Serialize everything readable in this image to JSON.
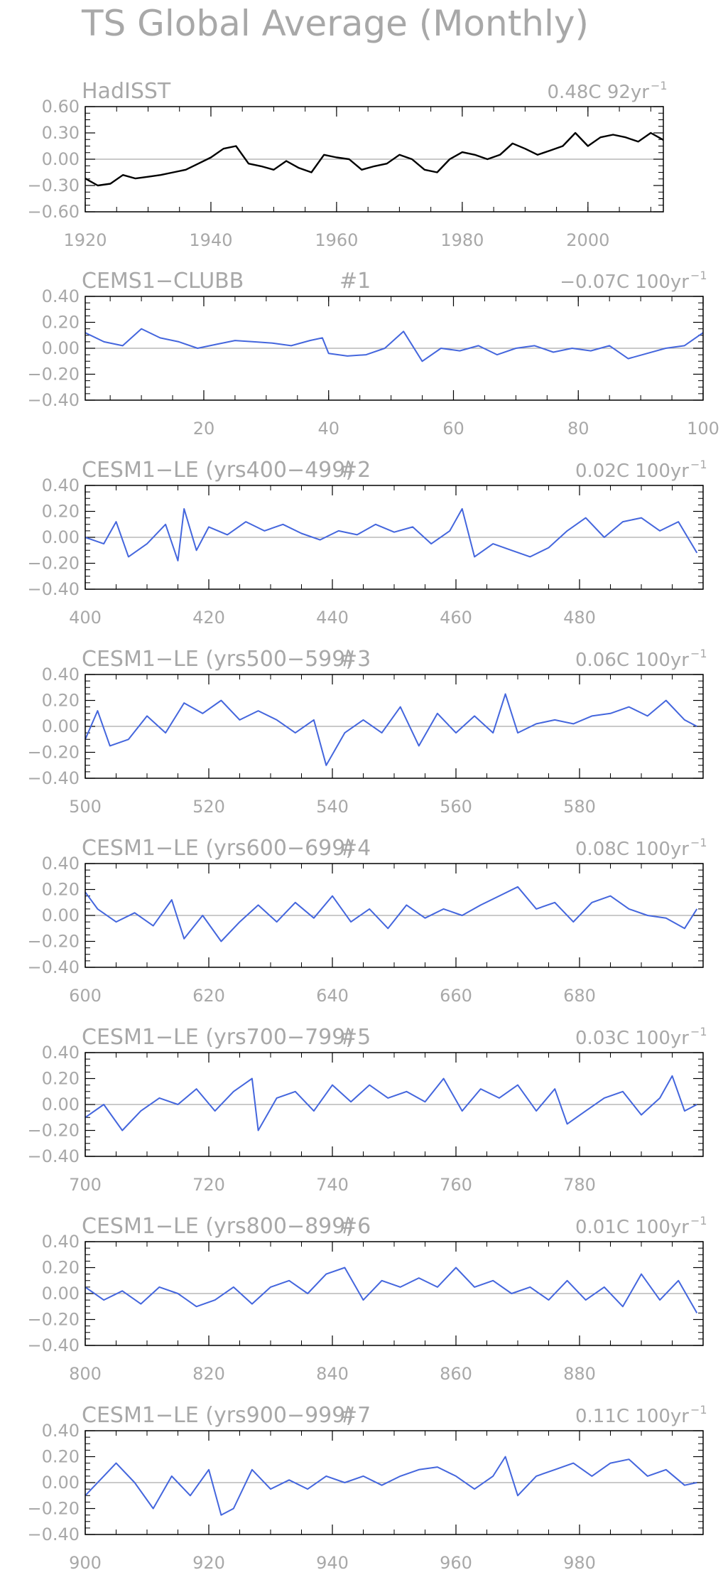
{
  "title": "TS Global Average (Monthly)",
  "chart_data": [
    {
      "type": "line",
      "title": "HadISST",
      "number_label": "",
      "trend_text": "0.48C  92yr",
      "trend_exp": "−1",
      "color": "#000000",
      "ylim": [
        -0.6,
        0.6
      ],
      "yticks": [
        0.6,
        0.3,
        0.0,
        -0.3,
        -0.6
      ],
      "ytick_labels": [
        "0.60",
        "0.30",
        "0.00",
        "−0.30",
        "−0.60"
      ],
      "xlim": [
        1920,
        2012
      ],
      "xticks": [
        1920,
        1940,
        1960,
        1980,
        2000
      ],
      "xtick_labels": [
        "1920",
        "1940",
        "1960",
        "1980",
        "2000"
      ],
      "series": [
        {
          "x": [
            1920,
            1922,
            1924,
            1926,
            1928,
            1930,
            1932,
            1934,
            1936,
            1938,
            1940,
            1942,
            1944,
            1946,
            1948,
            1950,
            1952,
            1954,
            1956,
            1958,
            1960,
            1962,
            1964,
            1966,
            1968,
            1970,
            1972,
            1974,
            1976,
            1978,
            1980,
            1982,
            1984,
            1986,
            1988,
            1990,
            1992,
            1994,
            1996,
            1998,
            2000,
            2002,
            2004,
            2006,
            2008,
            2010,
            2012
          ],
          "values": [
            -0.22,
            -0.3,
            -0.28,
            -0.18,
            -0.22,
            -0.2,
            -0.18,
            -0.15,
            -0.12,
            -0.05,
            0.02,
            0.12,
            0.15,
            -0.05,
            -0.08,
            -0.12,
            -0.02,
            -0.1,
            -0.15,
            0.05,
            0.02,
            0.0,
            -0.12,
            -0.08,
            -0.05,
            0.05,
            0.0,
            -0.12,
            -0.15,
            0.0,
            0.08,
            0.05,
            0.0,
            0.05,
            0.18,
            0.12,
            0.05,
            0.1,
            0.15,
            0.3,
            0.15,
            0.25,
            0.28,
            0.25,
            0.2,
            0.3,
            0.22
          ]
        }
      ]
    },
    {
      "type": "line",
      "title": "CEMS1−CLUBB",
      "number_label": "#1",
      "trend_text": "−0.07C  100yr",
      "trend_exp": "−1",
      "color": "#4466dd",
      "ylim": [
        -0.4,
        0.4
      ],
      "yticks": [
        0.4,
        0.2,
        0.0,
        -0.2,
        -0.4
      ],
      "ytick_labels": [
        "0.40",
        "0.20",
        "0.00",
        "−0.20",
        "−0.40"
      ],
      "xlim": [
        1,
        100
      ],
      "xticks": [
        20,
        40,
        60,
        80,
        100
      ],
      "xtick_labels": [
        "20",
        "40",
        "60",
        "80",
        "100"
      ],
      "series": [
        {
          "x": [
            1,
            4,
            7,
            10,
            13,
            16,
            19,
            22,
            25,
            28,
            31,
            34,
            37,
            39,
            40,
            43,
            46,
            49,
            52,
            55,
            58,
            61,
            64,
            67,
            70,
            73,
            76,
            79,
            82,
            85,
            88,
            91,
            94,
            97,
            100
          ],
          "values": [
            0.12,
            0.05,
            0.02,
            0.15,
            0.08,
            0.05,
            0.0,
            0.03,
            0.06,
            0.05,
            0.04,
            0.02,
            0.06,
            0.08,
            -0.04,
            -0.06,
            -0.05,
            0.0,
            0.13,
            -0.1,
            0.0,
            -0.02,
            0.02,
            -0.05,
            0.0,
            0.02,
            -0.03,
            0.0,
            -0.02,
            0.02,
            -0.08,
            -0.04,
            0.0,
            0.02,
            0.12
          ]
        }
      ]
    },
    {
      "type": "line",
      "title": "CESM1−LE (yrs400−499)",
      "number_label": "#2",
      "trend_text": "0.02C  100yr",
      "trend_exp": "−1",
      "color": "#4466dd",
      "ylim": [
        -0.4,
        0.4
      ],
      "yticks": [
        0.4,
        0.2,
        0.0,
        -0.2,
        -0.4
      ],
      "ytick_labels": [
        "0.40",
        "0.20",
        "0.00",
        "−0.20",
        "−0.40"
      ],
      "xlim": [
        400,
        500
      ],
      "xticks": [
        400,
        420,
        440,
        460,
        480
      ],
      "xtick_labels": [
        "400",
        "420",
        "440",
        "460",
        "480"
      ],
      "series": [
        {
          "x": [
            400,
            403,
            405,
            407,
            410,
            413,
            415,
            416,
            418,
            420,
            423,
            426,
            429,
            432,
            435,
            438,
            441,
            444,
            447,
            450,
            453,
            456,
            459,
            461,
            463,
            466,
            469,
            472,
            475,
            478,
            481,
            484,
            487,
            490,
            493,
            496,
            499
          ],
          "values": [
            0.0,
            -0.05,
            0.12,
            -0.15,
            -0.05,
            0.1,
            -0.18,
            0.22,
            -0.1,
            0.08,
            0.02,
            0.12,
            0.05,
            0.1,
            0.03,
            -0.02,
            0.05,
            0.02,
            0.1,
            0.04,
            0.08,
            -0.05,
            0.05,
            0.22,
            -0.15,
            -0.05,
            -0.1,
            -0.15,
            -0.08,
            0.05,
            0.15,
            0.0,
            0.12,
            0.15,
            0.05,
            0.12,
            -0.12
          ]
        }
      ]
    },
    {
      "type": "line",
      "title": "CESM1−LE (yrs500−599)",
      "number_label": "#3",
      "trend_text": "0.06C  100yr",
      "trend_exp": "−1",
      "color": "#4466dd",
      "ylim": [
        -0.4,
        0.4
      ],
      "yticks": [
        0.4,
        0.2,
        0.0,
        -0.2,
        -0.4
      ],
      "ytick_labels": [
        "0.40",
        "0.20",
        "0.00",
        "−0.20",
        "−0.40"
      ],
      "xlim": [
        500,
        600
      ],
      "xticks": [
        500,
        520,
        540,
        560,
        580
      ],
      "xtick_labels": [
        "500",
        "520",
        "540",
        "560",
        "580"
      ],
      "series": [
        {
          "x": [
            500,
            502,
            504,
            507,
            510,
            513,
            516,
            519,
            522,
            525,
            528,
            531,
            534,
            537,
            539,
            542,
            545,
            548,
            551,
            554,
            557,
            560,
            563,
            566,
            568,
            570,
            573,
            576,
            579,
            582,
            585,
            588,
            591,
            594,
            597,
            599
          ],
          "values": [
            -0.1,
            0.12,
            -0.15,
            -0.1,
            0.08,
            -0.05,
            0.18,
            0.1,
            0.2,
            0.05,
            0.12,
            0.05,
            -0.05,
            0.05,
            -0.3,
            -0.05,
            0.05,
            -0.05,
            0.15,
            -0.15,
            0.1,
            -0.05,
            0.08,
            -0.05,
            0.25,
            -0.05,
            0.02,
            0.05,
            0.02,
            0.08,
            0.1,
            0.15,
            0.08,
            0.2,
            0.05,
            0.0
          ]
        }
      ]
    },
    {
      "type": "line",
      "title": "CESM1−LE (yrs600−699)",
      "number_label": "#4",
      "trend_text": "0.08C  100yr",
      "trend_exp": "−1",
      "color": "#4466dd",
      "ylim": [
        -0.4,
        0.4
      ],
      "yticks": [
        0.4,
        0.2,
        0.0,
        -0.2,
        -0.4
      ],
      "ytick_labels": [
        "0.40",
        "0.20",
        "0.00",
        "−0.20",
        "−0.40"
      ],
      "xlim": [
        600,
        700
      ],
      "xticks": [
        600,
        620,
        640,
        660,
        680
      ],
      "xtick_labels": [
        "600",
        "620",
        "640",
        "660",
        "680"
      ],
      "series": [
        {
          "x": [
            600,
            602,
            605,
            608,
            611,
            614,
            616,
            619,
            622,
            625,
            628,
            631,
            634,
            637,
            640,
            643,
            646,
            649,
            652,
            655,
            658,
            661,
            664,
            667,
            670,
            673,
            676,
            679,
            682,
            685,
            688,
            691,
            694,
            697,
            699
          ],
          "values": [
            0.18,
            0.05,
            -0.05,
            0.02,
            -0.08,
            0.12,
            -0.18,
            0.0,
            -0.2,
            -0.05,
            0.08,
            -0.05,
            0.1,
            -0.02,
            0.15,
            -0.05,
            0.05,
            -0.1,
            0.08,
            -0.02,
            0.05,
            0.0,
            0.08,
            0.15,
            0.22,
            0.05,
            0.1,
            -0.05,
            0.1,
            0.15,
            0.05,
            0.0,
            -0.02,
            -0.1,
            0.05
          ]
        }
      ]
    },
    {
      "type": "line",
      "title": "CESM1−LE (yrs700−799)",
      "number_label": "#5",
      "trend_text": "0.03C  100yr",
      "trend_exp": "−1",
      "color": "#4466dd",
      "ylim": [
        -0.4,
        0.4
      ],
      "yticks": [
        0.4,
        0.2,
        0.0,
        -0.2,
        -0.4
      ],
      "ytick_labels": [
        "0.40",
        "0.20",
        "0.00",
        "−0.20",
        "−0.40"
      ],
      "xlim": [
        700,
        800
      ],
      "xticks": [
        700,
        720,
        740,
        760,
        780
      ],
      "xtick_labels": [
        "700",
        "720",
        "740",
        "760",
        "780"
      ],
      "series": [
        {
          "x": [
            700,
            703,
            706,
            709,
            712,
            715,
            718,
            721,
            724,
            727,
            728,
            731,
            734,
            737,
            740,
            743,
            746,
            749,
            752,
            755,
            758,
            761,
            764,
            767,
            770,
            773,
            776,
            778,
            781,
            784,
            787,
            790,
            793,
            795,
            797,
            799
          ],
          "values": [
            -0.1,
            0.0,
            -0.2,
            -0.05,
            0.05,
            0.0,
            0.12,
            -0.05,
            0.1,
            0.2,
            -0.2,
            0.05,
            0.1,
            -0.05,
            0.15,
            0.02,
            0.15,
            0.05,
            0.1,
            0.02,
            0.2,
            -0.05,
            0.12,
            0.05,
            0.15,
            -0.05,
            0.12,
            -0.15,
            -0.05,
            0.05,
            0.1,
            -0.08,
            0.05,
            0.22,
            -0.05,
            0.0
          ]
        }
      ]
    },
    {
      "type": "line",
      "title": "CESM1−LE (yrs800−899)",
      "number_label": "#6",
      "trend_text": "0.01C  100yr",
      "trend_exp": "−1",
      "color": "#4466dd",
      "ylim": [
        -0.4,
        0.4
      ],
      "yticks": [
        0.4,
        0.2,
        0.0,
        -0.2,
        -0.4
      ],
      "ytick_labels": [
        "0.40",
        "0.20",
        "0.00",
        "−0.20",
        "−0.40"
      ],
      "xlim": [
        800,
        900
      ],
      "xticks": [
        800,
        820,
        840,
        860,
        880
      ],
      "xtick_labels": [
        "800",
        "820",
        "840",
        "860",
        "880"
      ],
      "series": [
        {
          "x": [
            800,
            803,
            806,
            809,
            812,
            815,
            818,
            821,
            824,
            827,
            830,
            833,
            836,
            839,
            842,
            845,
            848,
            851,
            854,
            857,
            860,
            863,
            866,
            869,
            872,
            875,
            878,
            881,
            884,
            887,
            890,
            893,
            896,
            899
          ],
          "values": [
            0.05,
            -0.05,
            0.02,
            -0.08,
            0.05,
            0.0,
            -0.1,
            -0.05,
            0.05,
            -0.08,
            0.05,
            0.1,
            0.0,
            0.15,
            0.2,
            -0.05,
            0.1,
            0.05,
            0.12,
            0.05,
            0.2,
            0.05,
            0.1,
            0.0,
            0.05,
            -0.05,
            0.1,
            -0.05,
            0.05,
            -0.1,
            0.15,
            -0.05,
            0.1,
            -0.15
          ]
        }
      ]
    },
    {
      "type": "line",
      "title": "CESM1−LE (yrs900−999)",
      "number_label": "#7",
      "trend_text": "0.11C  100yr",
      "trend_exp": "−1",
      "color": "#4466dd",
      "ylim": [
        -0.4,
        0.4
      ],
      "yticks": [
        0.4,
        0.2,
        0.0,
        -0.2,
        -0.4
      ],
      "ytick_labels": [
        "0.40",
        "0.20",
        "0.00",
        "−0.20",
        "−0.40"
      ],
      "xlim": [
        900,
        1000
      ],
      "xticks": [
        900,
        920,
        940,
        960,
        980
      ],
      "xtick_labels": [
        "900",
        "920",
        "940",
        "960",
        "980"
      ],
      "series": [
        {
          "x": [
            900,
            903,
            905,
            908,
            911,
            914,
            917,
            920,
            922,
            924,
            927,
            930,
            933,
            936,
            939,
            942,
            945,
            948,
            951,
            954,
            957,
            960,
            963,
            966,
            968,
            970,
            973,
            976,
            979,
            982,
            985,
            988,
            991,
            994,
            997,
            999
          ],
          "values": [
            -0.1,
            0.05,
            0.15,
            0.0,
            -0.2,
            0.05,
            -0.1,
            0.1,
            -0.25,
            -0.2,
            0.1,
            -0.05,
            0.02,
            -0.05,
            0.05,
            0.0,
            0.05,
            -0.02,
            0.05,
            0.1,
            0.12,
            0.05,
            -0.05,
            0.05,
            0.2,
            -0.1,
            0.05,
            0.1,
            0.15,
            0.05,
            0.15,
            0.18,
            0.05,
            0.1,
            -0.02,
            0.0
          ]
        }
      ]
    }
  ]
}
